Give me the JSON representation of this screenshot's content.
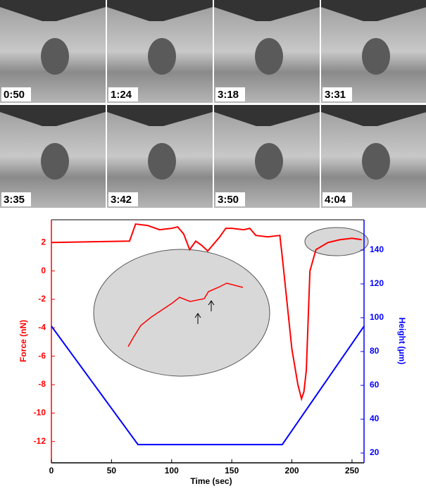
{
  "panels": [
    "0:50",
    "1:24",
    "3:18",
    "3:31",
    "3:35",
    "3:42",
    "3:50",
    "4:04"
  ],
  "chart_data": {
    "type": "line",
    "x_label": "Time (sec)",
    "y_label": "Force (nN)",
    "y2_label": "Height (μm)",
    "xlim": [
      0,
      260
    ],
    "xticks": [
      0,
      50,
      100,
      150,
      200,
      250
    ],
    "ylim": [
      -13.5,
      3.6
    ],
    "yticks": [
      -12,
      -10,
      -8,
      -6,
      -4,
      -2,
      0,
      2
    ],
    "y2lim": [
      14.2,
      157.9
    ],
    "y2ticks": [
      20,
      40,
      60,
      80,
      100,
      120,
      140
    ],
    "series": [
      {
        "name": "Force",
        "color": "#ff0000",
        "axis": "y",
        "x": [
          0,
          65,
          70,
          80,
          90,
          100,
          105,
          110,
          115,
          120,
          125,
          130,
          135,
          140,
          145,
          150,
          160,
          165,
          170,
          180,
          190,
          192,
          200,
          205,
          208,
          210,
          212,
          215,
          220,
          230,
          240,
          250,
          258
        ],
        "values": [
          2.0,
          2.1,
          3.3,
          3.2,
          2.9,
          3.0,
          3.1,
          2.6,
          1.5,
          2.1,
          1.8,
          1.4,
          1.9,
          2.4,
          3.0,
          3.0,
          2.9,
          3.0,
          2.5,
          2.4,
          2.5,
          1.0,
          -5.5,
          -8.0,
          -9.0,
          -8.5,
          -7.0,
          0.0,
          1.5,
          2.0,
          2.2,
          2.3,
          2.2
        ]
      },
      {
        "name": "Height",
        "color": "#0000ff",
        "axis": "y2",
        "x": [
          0,
          72,
          192,
          260
        ],
        "values": [
          95,
          25,
          25,
          95
        ]
      }
    ]
  }
}
